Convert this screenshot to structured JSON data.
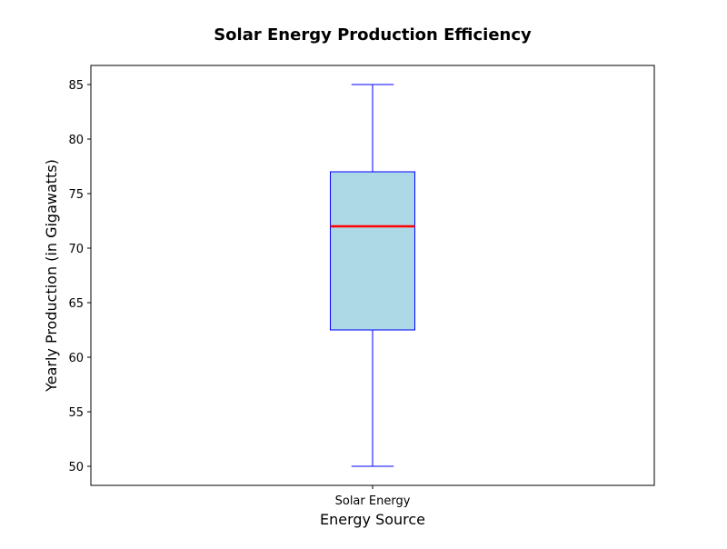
{
  "chart_data": {
    "type": "box",
    "title": "Solar Energy Production Efficiency",
    "xlabel": "Energy Source",
    "ylabel": "Yearly Production (in Gigawatts)",
    "ylim": [
      48.25,
      86.75
    ],
    "yticks": [
      50,
      55,
      60,
      65,
      70,
      75,
      80,
      85
    ],
    "categories": [
      "Solar Energy"
    ],
    "boxes": [
      {
        "category": "Solar Energy",
        "whisker_low": 50,
        "q1": 62.5,
        "median": 72,
        "q3": 77,
        "whisker_high": 85
      }
    ],
    "grid": false,
    "colors": {
      "box_fill": "#add8e6",
      "box_edge": "#0000ff",
      "median": "#ff0000",
      "whisker": "#0000ff",
      "axes": "#000000"
    }
  }
}
